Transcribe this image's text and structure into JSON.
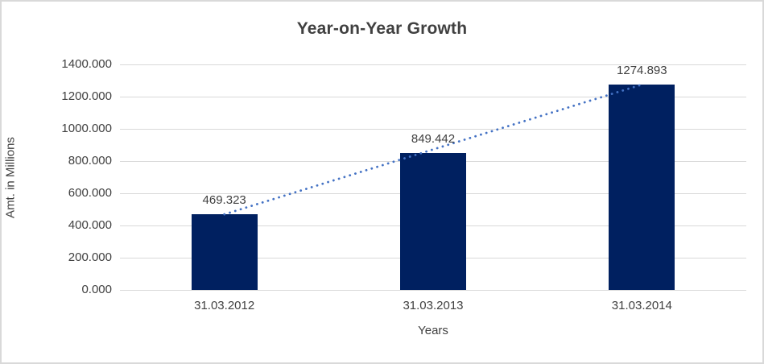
{
  "chart_data": {
    "type": "bar",
    "title": "Year-on-Year Growth",
    "xlabel": "Years",
    "ylabel": "Amt. in Millions",
    "categories": [
      "31.03.2012",
      "31.03.2013",
      "31.03.2014"
    ],
    "values": [
      469.323,
      849.442,
      1274.893
    ],
    "value_labels": [
      "469.323",
      "849.442",
      "1274.893"
    ],
    "ylim": [
      0,
      1400
    ],
    "ytick_step": 200,
    "ytick_labels": [
      "0.000",
      "200.000",
      "400.000",
      "600.000",
      "800.000",
      "1000.000",
      "1200.000",
      "1400.000"
    ],
    "grid": true,
    "legend": "none",
    "trendline": {
      "style": "dotted",
      "from_category": 0,
      "to_category": 2
    },
    "colors": {
      "bar": "#002060",
      "trendline": "#4472c4",
      "gridline": "#d9d9d9",
      "text": "#404040",
      "frame_border": "#d9d9d9",
      "background": "#ffffff"
    }
  }
}
